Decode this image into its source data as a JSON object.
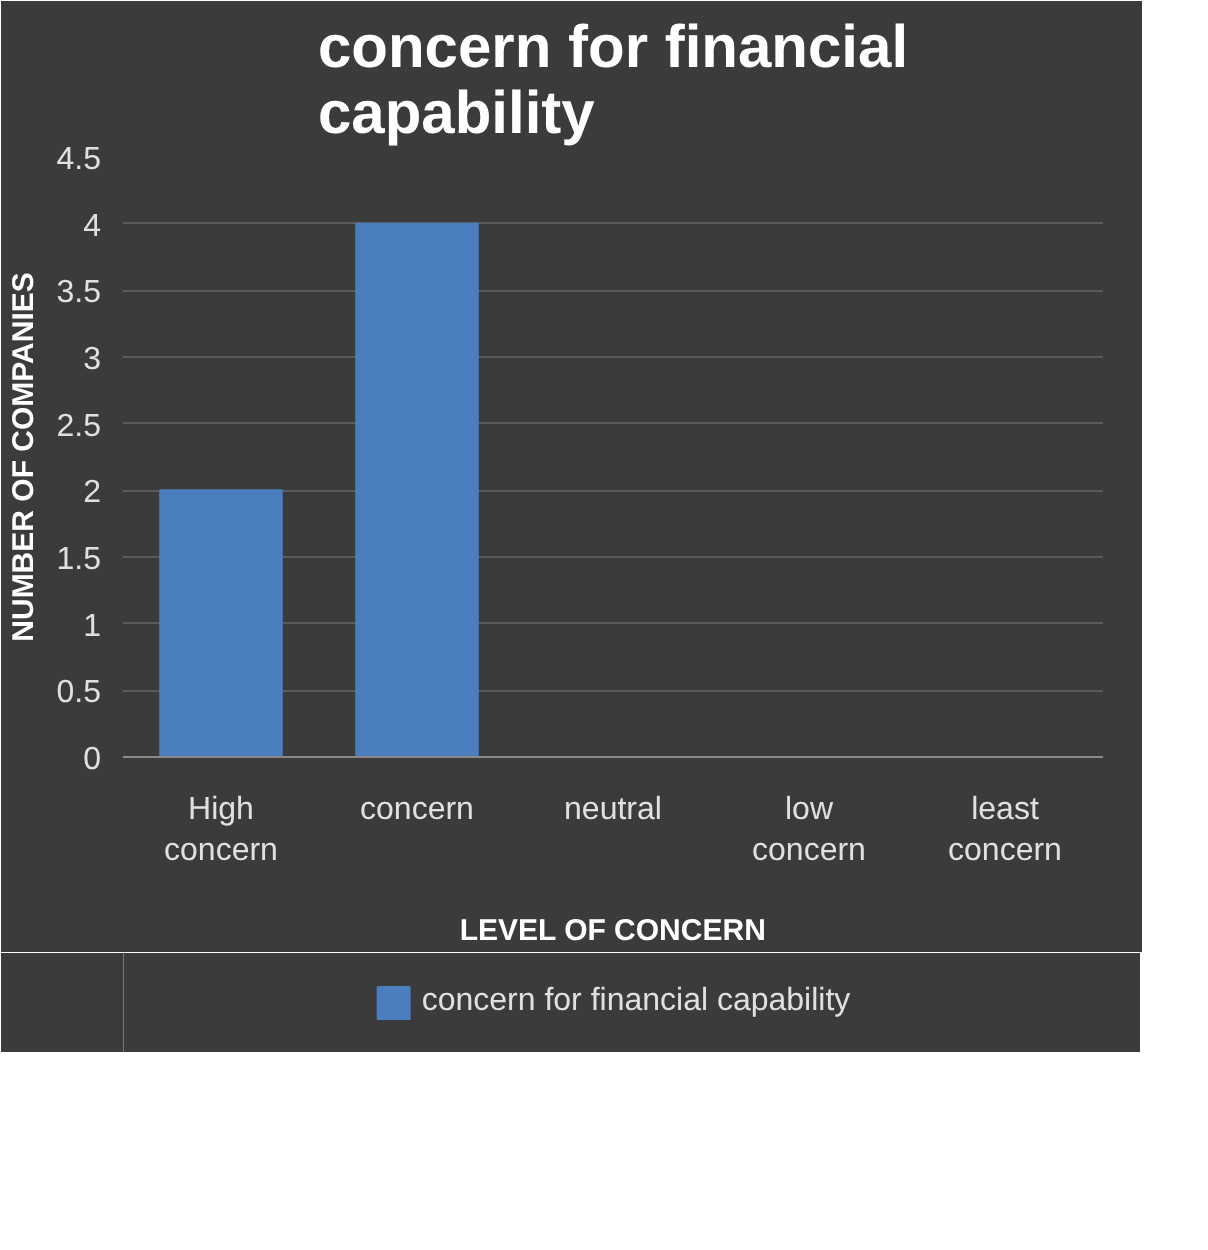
{
  "chart_data": {
    "type": "bar",
    "title": "concern for financial capability",
    "xlabel": "LEVEL OF CONCERN",
    "ylabel": "NUMBER OF COMPANIES",
    "categories": [
      "High concern",
      "concern",
      "neutral",
      "low concern",
      "least concern"
    ],
    "series": [
      {
        "name": "concern for financial capability",
        "color": "#4a7ebf",
        "values": [
          2,
          4,
          0,
          0,
          0
        ]
      }
    ],
    "ylim": [
      0,
      4.5
    ],
    "yticks": [
      0,
      0.5,
      1,
      1.5,
      2,
      2.5,
      3,
      3.5,
      4,
      4.5
    ],
    "grid": "y",
    "legend": "bottom"
  }
}
